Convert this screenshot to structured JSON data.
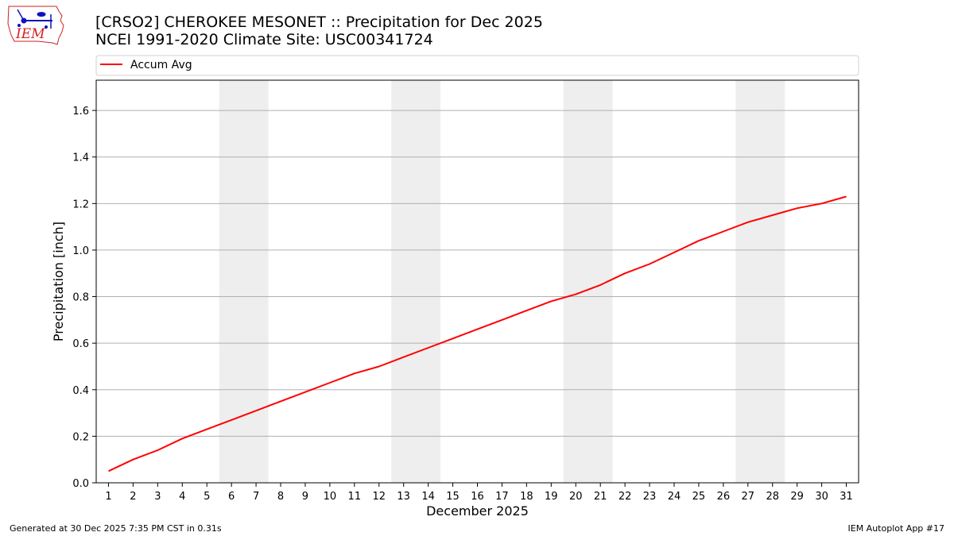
{
  "header": {
    "title_line1": "[CRSO2] CHEROKEE MESONET :: Precipitation for Dec 2025",
    "title_line2": "NCEI 1991-2020 Climate Site: USC00341724",
    "logo_text": "IEM"
  },
  "footer": {
    "generated": "Generated at 30 Dec 2025 7:35 PM CST in 0.31s",
    "app": "IEM Autoplot App #17"
  },
  "colors": {
    "series": "#ff0000",
    "weekend_band": "#eeeeee",
    "grid": "#b0b0b0",
    "logo": "#1010c0",
    "logo_text": "#d02020"
  },
  "chart_data": {
    "type": "line",
    "xlabel": "December 2025",
    "ylabel": "Precipitation [inch]",
    "xlim": [
      0.5,
      31.5
    ],
    "ylim": [
      0,
      1.73
    ],
    "y_ticks": [
      0.0,
      0.2,
      0.4,
      0.6,
      0.8,
      1.0,
      1.2,
      1.4,
      1.6
    ],
    "y_tick_labels": [
      "0.0",
      "0.2",
      "0.4",
      "0.6",
      "0.8",
      "1.0",
      "1.2",
      "1.4",
      "1.6"
    ],
    "categories": [
      "1",
      "2",
      "3",
      "4",
      "5",
      "6",
      "7",
      "8",
      "9",
      "10",
      "11",
      "12",
      "13",
      "14",
      "15",
      "16",
      "17",
      "18",
      "19",
      "20",
      "21",
      "22",
      "23",
      "24",
      "25",
      "26",
      "27",
      "28",
      "29",
      "30",
      "31"
    ],
    "grid": "horizontal",
    "legend_position": "top",
    "shaded_weekend_ranges": [
      [
        6,
        7
      ],
      [
        13,
        14
      ],
      [
        20,
        21
      ],
      [
        27,
        28
      ]
    ],
    "series": [
      {
        "name": "Accum Avg",
        "color": "#ff0000",
        "x": [
          1,
          2,
          3,
          4,
          5,
          6,
          7,
          8,
          9,
          10,
          11,
          12,
          13,
          14,
          15,
          16,
          17,
          18,
          19,
          20,
          21,
          22,
          23,
          24,
          25,
          26,
          27,
          28,
          29,
          30,
          31
        ],
        "values": [
          0.05,
          0.1,
          0.14,
          0.19,
          0.23,
          0.27,
          0.31,
          0.35,
          0.39,
          0.43,
          0.47,
          0.5,
          0.54,
          0.58,
          0.62,
          0.66,
          0.7,
          0.74,
          0.78,
          0.81,
          0.85,
          0.9,
          0.94,
          0.99,
          1.04,
          1.08,
          1.12,
          1.15,
          1.18,
          1.2,
          1.23
        ]
      }
    ]
  }
}
